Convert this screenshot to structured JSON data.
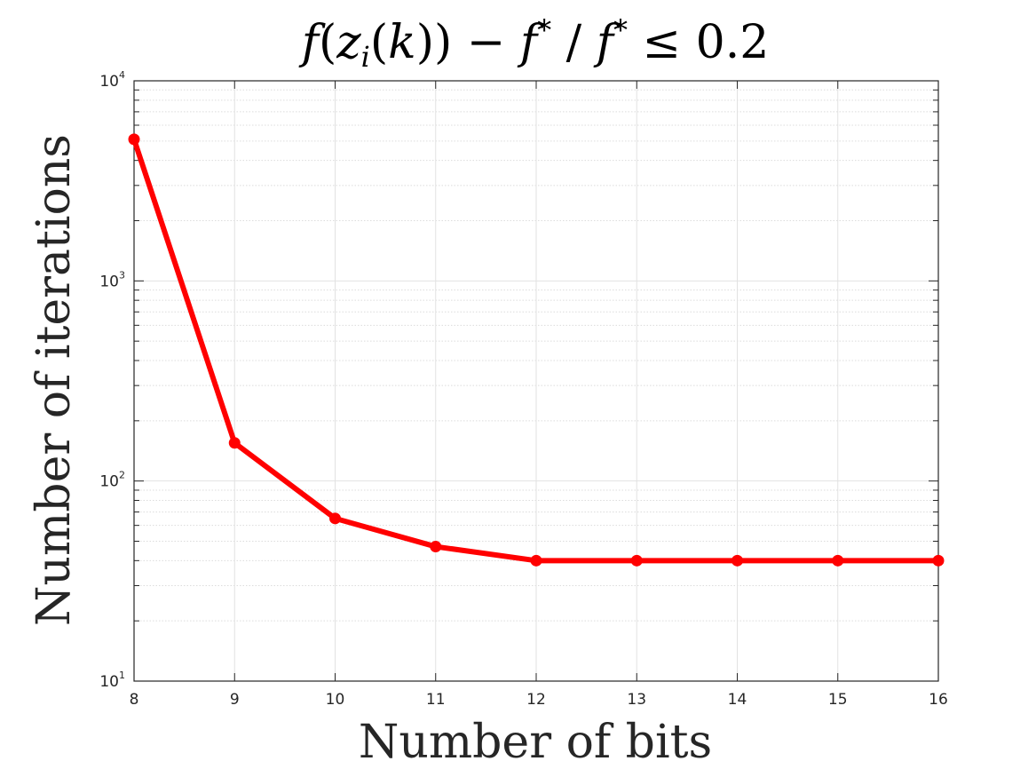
{
  "chart_data": {
    "type": "line",
    "title": "f(z_i(k)) − f* / f* ≤ 0.2",
    "title_parts": {
      "f1": "f",
      "open1": "(",
      "z": "z",
      "sub_i": "i",
      "open2": "(",
      "k": "k",
      "close2": "))",
      "minus": " − ",
      "f2": "f",
      "star1": "*",
      "slash": " / ",
      "f3": "f",
      "star2": "*",
      "rest": " ≤ 0.2"
    },
    "xlabel": "Number of bits",
    "ylabel": "Number of iterations",
    "y_scale": "log",
    "x": [
      8,
      9,
      10,
      11,
      12,
      13,
      14,
      15,
      16
    ],
    "series": [
      {
        "values": [
          5100,
          155,
          65,
          47,
          40,
          40,
          40,
          40,
          40
        ],
        "color": "#ff0000"
      }
    ],
    "xlim": [
      8,
      16
    ],
    "ylim": [
      10,
      10000
    ],
    "x_ticks": [
      "8",
      "9",
      "10",
      "11",
      "12",
      "13",
      "14",
      "15",
      "16"
    ],
    "y_ticks": [
      {
        "value": 10,
        "base": "10",
        "exp": "1"
      },
      {
        "value": 100,
        "base": "10",
        "exp": "2"
      },
      {
        "value": 1000,
        "base": "10",
        "exp": "3"
      },
      {
        "value": 10000,
        "base": "10",
        "exp": "4"
      }
    ],
    "grid": true,
    "minor_grid": true
  }
}
